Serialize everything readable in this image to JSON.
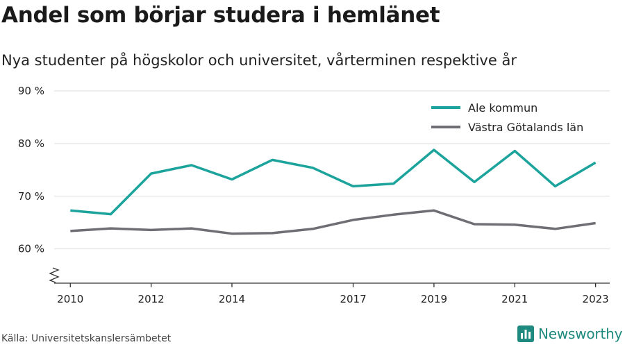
{
  "title": "Andel som börjar studera i hemlänet",
  "subtitle": "Nya studenter på högskolor och universitet, vårterminen respektive år",
  "source": "Källa: Universitetskanslersämbetet",
  "brand": "Newsworthy",
  "colors": {
    "ale": "#1ba39c",
    "vg": "#6f6e75",
    "grid": "#dddddd",
    "axis": "#333333",
    "brand": "#1f8a80"
  },
  "chart_data": {
    "type": "line",
    "x": [
      2010,
      2011,
      2012,
      2013,
      2014,
      2015,
      2016,
      2017,
      2018,
      2019,
      2020,
      2021,
      2022,
      2023
    ],
    "x_tick_labels": [
      "2010",
      "2012",
      "2014",
      "2017",
      "2019",
      "2021",
      "2023"
    ],
    "y_tick_labels": [
      "60 %",
      "70 %",
      "80 %",
      "90 %"
    ],
    "y_ticks": [
      60,
      70,
      80,
      90
    ],
    "ylim": [
      53.5,
      90
    ],
    "xlim": [
      2009.6,
      2023.35
    ],
    "grid": true,
    "legend_position": "top-right",
    "y_axis_break": true,
    "series": [
      {
        "name": "Ale kommun",
        "color": "#1ba39c",
        "values": [
          67.3,
          66.6,
          74.3,
          75.9,
          73.2,
          76.9,
          75.4,
          71.9,
          72.4,
          78.8,
          72.7,
          78.6,
          71.9,
          76.4
        ]
      },
      {
        "name": "Västra Götalands län",
        "color": "#6f6e75",
        "values": [
          63.4,
          63.9,
          63.6,
          63.9,
          62.9,
          63.0,
          63.8,
          65.5,
          66.5,
          67.3,
          64.7,
          64.6,
          63.8,
          64.9
        ]
      }
    ]
  }
}
